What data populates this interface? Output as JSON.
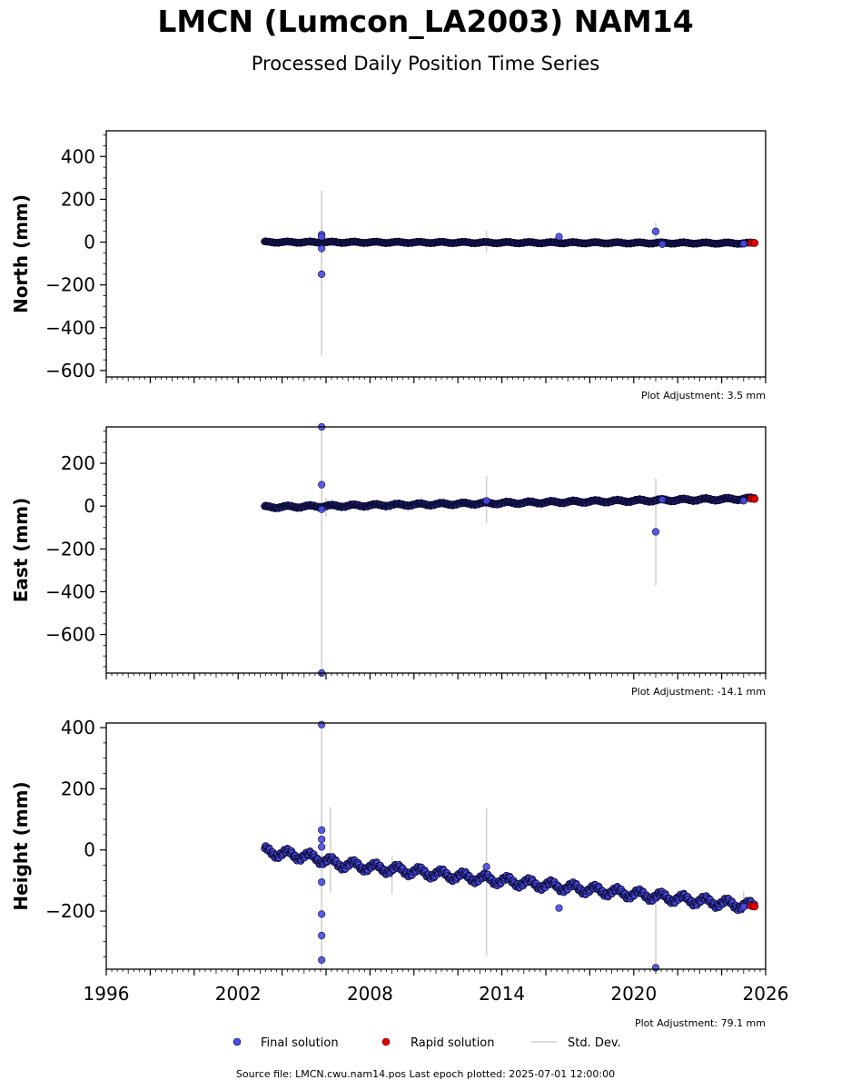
{
  "title": "LMCN (Lumcon_LA2003) NAM14",
  "subtitle": "Processed Daily Position Time Series",
  "source_line": "Source file: LMCN.cwu.nam14.pos  Last epoch plotted: 2025-07-01 12:00:00",
  "colors": {
    "final": "#4a4ae6",
    "final_edge": "#0b0b33",
    "rapid": "#e00000",
    "stddev": "#cfcfcf"
  },
  "legend": {
    "final": "Final solution",
    "rapid": "Rapid solution",
    "stddev": "Std. Dev."
  },
  "chart_data": [
    {
      "type": "scatter",
      "ylabel": "North (mm)",
      "adjustment": "Plot Adjustment: 3.5 mm",
      "xlim": [
        1996,
        2026
      ],
      "ylim": [
        -630,
        520
      ],
      "yticks": [
        400,
        200,
        0,
        -200,
        -400,
        -600
      ],
      "trend": [
        [
          2003.2,
          0
        ],
        [
          2025.5,
          -5
        ]
      ],
      "wiggle": 3,
      "outliers": [
        [
          2005.8,
          35
        ],
        [
          2005.8,
          25
        ],
        [
          2005.8,
          -30
        ],
        [
          2005.8,
          -150
        ],
        [
          2016.6,
          25
        ],
        [
          2021.0,
          50
        ],
        [
          2021.3,
          -10
        ],
        [
          2025.0,
          -8
        ]
      ],
      "errorbars": [
        [
          2005.8,
          -530,
          240
        ],
        [
          2005.8,
          -40,
          80
        ],
        [
          2013.3,
          -50,
          55
        ],
        [
          2021.0,
          -10,
          90
        ],
        [
          2016.6,
          5,
          40
        ]
      ],
      "rapid": [
        [
          2025.35,
          -3
        ],
        [
          2025.45,
          -3
        ],
        [
          2025.5,
          -4
        ]
      ]
    },
    {
      "type": "scatter",
      "ylabel": "East (mm)",
      "adjustment": "Plot Adjustment: -14.1 mm",
      "xlim": [
        1996,
        2026
      ],
      "ylim": [
        -780,
        370
      ],
      "yticks": [
        200,
        0,
        -200,
        -400,
        -600
      ],
      "trend": [
        [
          2003.2,
          -5
        ],
        [
          2025.5,
          35
        ]
      ],
      "wiggle": 5,
      "outliers": [
        [
          2005.8,
          370
        ],
        [
          2005.8,
          100
        ],
        [
          2005.8,
          -15
        ],
        [
          2005.8,
          -780
        ],
        [
          2013.3,
          25
        ],
        [
          2021.0,
          -120
        ],
        [
          2021.3,
          30
        ],
        [
          2025.0,
          25
        ]
      ],
      "errorbars": [
        [
          2005.8,
          -780,
          370
        ],
        [
          2006.0,
          -50,
          40
        ],
        [
          2013.3,
          -80,
          140
        ],
        [
          2021.0,
          -370,
          130
        ]
      ],
      "rapid": [
        [
          2025.35,
          35
        ],
        [
          2025.45,
          35
        ],
        [
          2025.5,
          34
        ]
      ]
    },
    {
      "type": "scatter",
      "ylabel": "Height (mm)",
      "adjustment": "Plot Adjustment: 79.1 mm",
      "xlabel": "",
      "xticks": [
        1996,
        2002,
        2008,
        2014,
        2020,
        2026
      ],
      "xlim": [
        1996,
        2026
      ],
      "ylim": [
        -390,
        415
      ],
      "yticks": [
        400,
        200,
        0,
        -200
      ],
      "trend": [
        [
          2003.2,
          -5
        ],
        [
          2005.5,
          -25
        ],
        [
          2006.5,
          -45
        ],
        [
          2025.5,
          -185
        ]
      ],
      "wiggle": 12,
      "outliers": [
        [
          2005.8,
          410
        ],
        [
          2005.8,
          65
        ],
        [
          2005.8,
          35
        ],
        [
          2005.8,
          10
        ],
        [
          2005.8,
          -105
        ],
        [
          2005.8,
          -210
        ],
        [
          2005.8,
          -280
        ],
        [
          2005.8,
          -360
        ],
        [
          2013.3,
          -55
        ],
        [
          2016.6,
          -190
        ],
        [
          2021.0,
          -385
        ],
        [
          2025.0,
          -185
        ]
      ],
      "errorbars": [
        [
          2005.8,
          -390,
          415
        ],
        [
          2006.2,
          -140,
          140
        ],
        [
          2009.0,
          -145,
          -20
        ],
        [
          2013.3,
          -345,
          135
        ],
        [
          2021.0,
          -385,
          -175
        ],
        [
          2025.0,
          -210,
          -135
        ]
      ],
      "rapid": [
        [
          2025.35,
          -183
        ],
        [
          2025.45,
          -184
        ],
        [
          2025.5,
          -185
        ]
      ]
    }
  ]
}
